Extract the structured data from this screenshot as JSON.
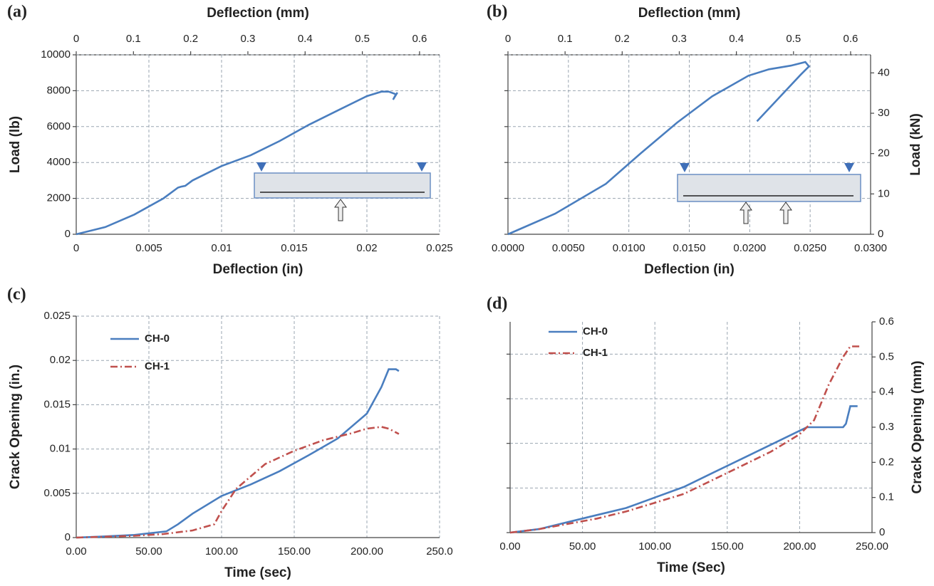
{
  "chart_data": [
    {
      "type": "line",
      "label": "(a)",
      "xlabel": "Deflection (in)",
      "xlim": [
        0,
        0.025
      ],
      "xticks": [
        0,
        0.005,
        0.01,
        0.015,
        0.02,
        0.025
      ],
      "x2label": "Deflection (mm)",
      "x2lim": [
        0,
        0.635
      ],
      "x2ticks": [
        0,
        0.1,
        0.2,
        0.3,
        0.4,
        0.5,
        0.6
      ],
      "ylabel": "Load (lb)",
      "ylim": [
        0,
        10000
      ],
      "yticks": [
        0,
        2000,
        4000,
        6000,
        8000,
        10000
      ],
      "grid": true,
      "series": [
        {
          "color": "#4a7ebf",
          "x": [
            0,
            0.002,
            0.004,
            0.006,
            0.007,
            0.0072,
            0.0075,
            0.008,
            0.01,
            0.012,
            0.014,
            0.016,
            0.018,
            0.02,
            0.021,
            0.0215,
            0.022,
            0.0218,
            0.0221
          ],
          "values": [
            0,
            400,
            1100,
            2000,
            2600,
            2650,
            2700,
            3000,
            3800,
            4400,
            5200,
            6100,
            6900,
            7700,
            7950,
            7950,
            7800,
            7500,
            7900
          ]
        }
      ]
    },
    {
      "type": "line",
      "label": "(b)",
      "xlabel": "Deflection (in)",
      "xlim": [
        0,
        0.03
      ],
      "xticks": [
        {
          "value": 0,
          "label": "0.0000"
        },
        {
          "value": 0.005,
          "label": "0.0050"
        },
        {
          "value": 0.01,
          "label": "0.0100"
        },
        {
          "value": 0.015,
          "label": "0.0150"
        },
        {
          "value": 0.02,
          "label": "0.0200"
        },
        {
          "value": 0.025,
          "label": "0.0250"
        },
        {
          "value": 0.03,
          "label": "0.0300"
        }
      ],
      "x2label": "Deflection (mm)",
      "x2lim": [
        0,
        0.635
      ],
      "x2ticks": [
        0,
        0.1,
        0.2,
        0.3,
        0.4,
        0.5,
        0.6
      ],
      "ylim": [
        0,
        10000
      ],
      "yticks": [
        0,
        2000,
        4000,
        6000,
        8000,
        10000
      ],
      "y2label": "Load (kN)",
      "y2lim": [
        0,
        44.48
      ],
      "y2ticks": [
        0,
        10,
        20,
        30,
        40
      ],
      "grid": true,
      "series": [
        {
          "color": "#4a7ebf",
          "axis": "y2",
          "x": [
            0,
            0.0039,
            0.0081,
            0.011,
            0.014,
            0.0169,
            0.0199,
            0.0216,
            0.0234,
            0.0246,
            0.0249,
            0.0242,
            0.0206
          ],
          "values": [
            0,
            5.1,
            12.5,
            20.1,
            27.7,
            34.2,
            39.3,
            40.9,
            41.8,
            42.7,
            41.6,
            39.5,
            28.0
          ]
        }
      ]
    },
    {
      "type": "line",
      "label": "(c)",
      "xlabel": "Time (sec)",
      "xlim": [
        0,
        250
      ],
      "xticks": [
        {
          "value": 0,
          "label": "0.00"
        },
        {
          "value": 50,
          "label": "50.00"
        },
        {
          "value": 100,
          "label": "100.00"
        },
        {
          "value": 150,
          "label": "150.00"
        },
        {
          "value": 200,
          "label": "200.00"
        },
        {
          "value": 250,
          "label": "250.0"
        }
      ],
      "ylabel": "Crack Opening (in.)",
      "ylim": [
        0,
        0.025
      ],
      "yticks": [
        0,
        0.005,
        0.01,
        0.015,
        0.02,
        0.025
      ],
      "grid": true,
      "series": [
        {
          "name": "CH-0",
          "color": "#4a7ebf",
          "dash": "solid",
          "x": [
            0,
            15,
            40,
            62,
            70,
            80,
            100,
            120,
            140,
            160,
            180,
            200,
            210,
            215,
            220,
            222
          ],
          "values": [
            0,
            0.0001,
            0.0003,
            0.0007,
            0.0015,
            0.0027,
            0.0047,
            0.006,
            0.0075,
            0.0093,
            0.0112,
            0.014,
            0.017,
            0.019,
            0.019,
            0.0188
          ]
        },
        {
          "name": "CH-1",
          "color": "#c0504d",
          "dash": "dashdot",
          "x": [
            0,
            40,
            60,
            80,
            95,
            100,
            110,
            130,
            150,
            170,
            190,
            200,
            210,
            215,
            222
          ],
          "values": [
            0,
            0.0002,
            0.0004,
            0.0008,
            0.0015,
            0.003,
            0.0055,
            0.0083,
            0.0098,
            0.011,
            0.0118,
            0.0123,
            0.0125,
            0.0123,
            0.0117
          ]
        }
      ]
    },
    {
      "type": "line",
      "label": "(d)",
      "xlabel": "Time (Sec)",
      "xlim": [
        0,
        250
      ],
      "xticks": [
        {
          "value": 0,
          "label": "0.00"
        },
        {
          "value": 50,
          "label": "50.00"
        },
        {
          "value": 100,
          "label": "100.00"
        },
        {
          "value": 150,
          "label": "150.00"
        },
        {
          "value": 200,
          "label": "200.00"
        },
        {
          "value": 250,
          "label": "250.00"
        }
      ],
      "ylim": [
        0,
        0.02362
      ],
      "yticks": [
        0,
        0.005,
        0.01,
        0.015,
        0.02
      ],
      "y2label": "Crack Opening (mm)",
      "y2lim": [
        0,
        0.6
      ],
      "y2ticks": [
        0,
        0.1,
        0.2,
        0.3,
        0.4,
        0.5,
        0.6
      ],
      "grid": true,
      "series": [
        {
          "name": "CH-0",
          "color": "#4a7ebf",
          "dash": "solid",
          "axis": "y2",
          "x": [
            0,
            20,
            40,
            60,
            80,
            100,
            120,
            140,
            160,
            180,
            200,
            205,
            230,
            232,
            235,
            240
          ],
          "values": [
            0,
            0.01,
            0.03,
            0.05,
            0.07,
            0.1,
            0.13,
            0.17,
            0.21,
            0.25,
            0.29,
            0.3,
            0.3,
            0.31,
            0.36,
            0.36
          ]
        },
        {
          "name": "CH-1",
          "color": "#c0504d",
          "dash": "dashdot",
          "axis": "y2",
          "x": [
            0,
            20,
            40,
            60,
            80,
            100,
            120,
            140,
            160,
            180,
            200,
            210,
            220,
            230,
            235,
            242
          ],
          "values": [
            0,
            0.01,
            0.025,
            0.04,
            0.06,
            0.085,
            0.11,
            0.15,
            0.19,
            0.23,
            0.28,
            0.32,
            0.42,
            0.5,
            0.53,
            0.53
          ]
        }
      ]
    }
  ]
}
